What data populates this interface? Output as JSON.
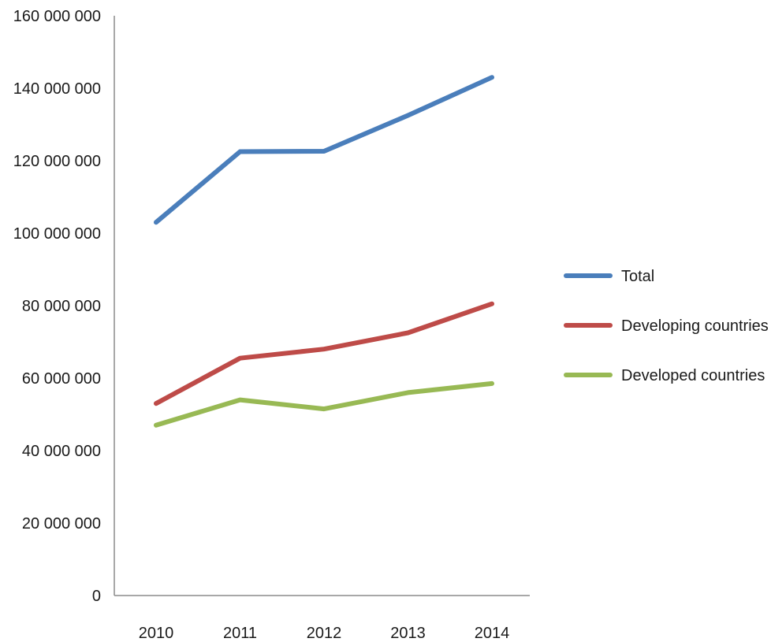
{
  "chart_data": {
    "type": "line",
    "title": "",
    "xlabel": "",
    "ylabel": "",
    "categories": [
      "2010",
      "2011",
      "2012",
      "2013",
      "2014"
    ],
    "ylim": [
      0,
      160000000
    ],
    "y_ticks": [
      0,
      20000000,
      40000000,
      60000000,
      80000000,
      100000000,
      120000000,
      140000000,
      160000000
    ],
    "y_tick_labels": [
      "0",
      "20 000 000",
      "40 000 000",
      "60 000 000",
      "80 000 000",
      "100 000 000",
      "120 000 000",
      "140 000 000",
      "160 000 000"
    ],
    "grid": false,
    "legend_position": "right",
    "series": [
      {
        "name": "Total",
        "color": "#4a7ebb",
        "values": [
          103000000,
          122500000,
          122600000,
          132500000,
          143000000
        ]
      },
      {
        "name": "Developing countries",
        "color": "#be4b48",
        "values": [
          53000000,
          65500000,
          68000000,
          72500000,
          80500000
        ]
      },
      {
        "name": "Developed countries",
        "color": "#98b954",
        "values": [
          47000000,
          54000000,
          51500000,
          56000000,
          58500000
        ]
      }
    ]
  }
}
